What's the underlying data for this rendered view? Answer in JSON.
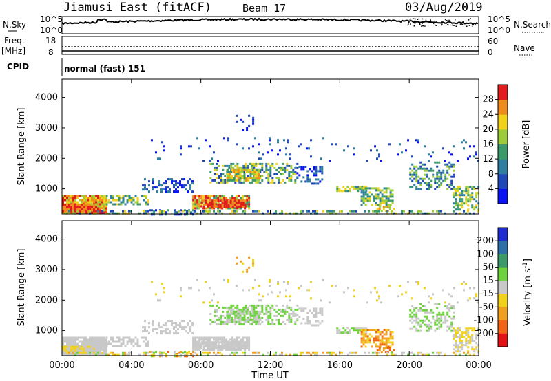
{
  "header": {
    "title": "Jiamusi East (fitACF)",
    "beam": "Beam 17",
    "date": "03/Aug/2019"
  },
  "top_panel": {
    "left_label": "N.Sky",
    "right_label": "N.Search",
    "left_ticks": [
      "10^5",
      "10^0"
    ],
    "right_ticks": [
      "10^5",
      "10^0"
    ]
  },
  "freq_panel": {
    "left_label_1": "Freq.",
    "left_label_2": "[MHz]",
    "left_ticks": [
      "18",
      "8"
    ],
    "right_label": "Nave",
    "right_ticks": [
      "60",
      "0"
    ]
  },
  "cpid_panel": {
    "label": "CPID",
    "value": "normal (fast) 151"
  },
  "chart_data": [
    {
      "type": "heatmap",
      "title": "",
      "xlabel": "",
      "ylabel": "Slant Range [km]",
      "x_ticks": [
        "00:00",
        "04:00",
        "08:00",
        "12:00",
        "16:00",
        "20:00",
        "00:00"
      ],
      "y_ticks": [
        "1000",
        "2000",
        "3000",
        "4000"
      ],
      "ylim": [
        180,
        4600
      ],
      "colorbar": {
        "label": "Power [dB]",
        "ticks": [
          "4",
          "8",
          "12",
          "16",
          "20",
          "24",
          "28"
        ],
        "range": [
          0,
          32
        ],
        "colors": [
          "#0a14f0",
          "#2048b8",
          "#2f7ea0",
          "#3c9a6a",
          "#9ccc3a",
          "#f0d21e",
          "#f08c1e",
          "#e01e1e"
        ]
      }
    },
    {
      "type": "heatmap",
      "title": "",
      "xlabel": "Time UT",
      "ylabel": "Slant Range [km]",
      "x_ticks": [
        "00:00",
        "04:00",
        "08:00",
        "12:00",
        "16:00",
        "20:00",
        "00:00"
      ],
      "y_ticks": [
        "1000",
        "2000",
        "3000",
        "4000"
      ],
      "ylim": [
        180,
        4600
      ],
      "colorbar": {
        "label": "Velocity [m s^-1]",
        "ticks": [
          "200",
          "100",
          "50",
          "15",
          "-15",
          "-50",
          "-100",
          "-200"
        ],
        "colors": [
          "#1e2cd0",
          "#2e6fa8",
          "#3c9a6a",
          "#6dd23c",
          "#c8c8c8",
          "#f0d21e",
          "#f0a01e",
          "#f06414",
          "#e01414"
        ]
      }
    }
  ]
}
